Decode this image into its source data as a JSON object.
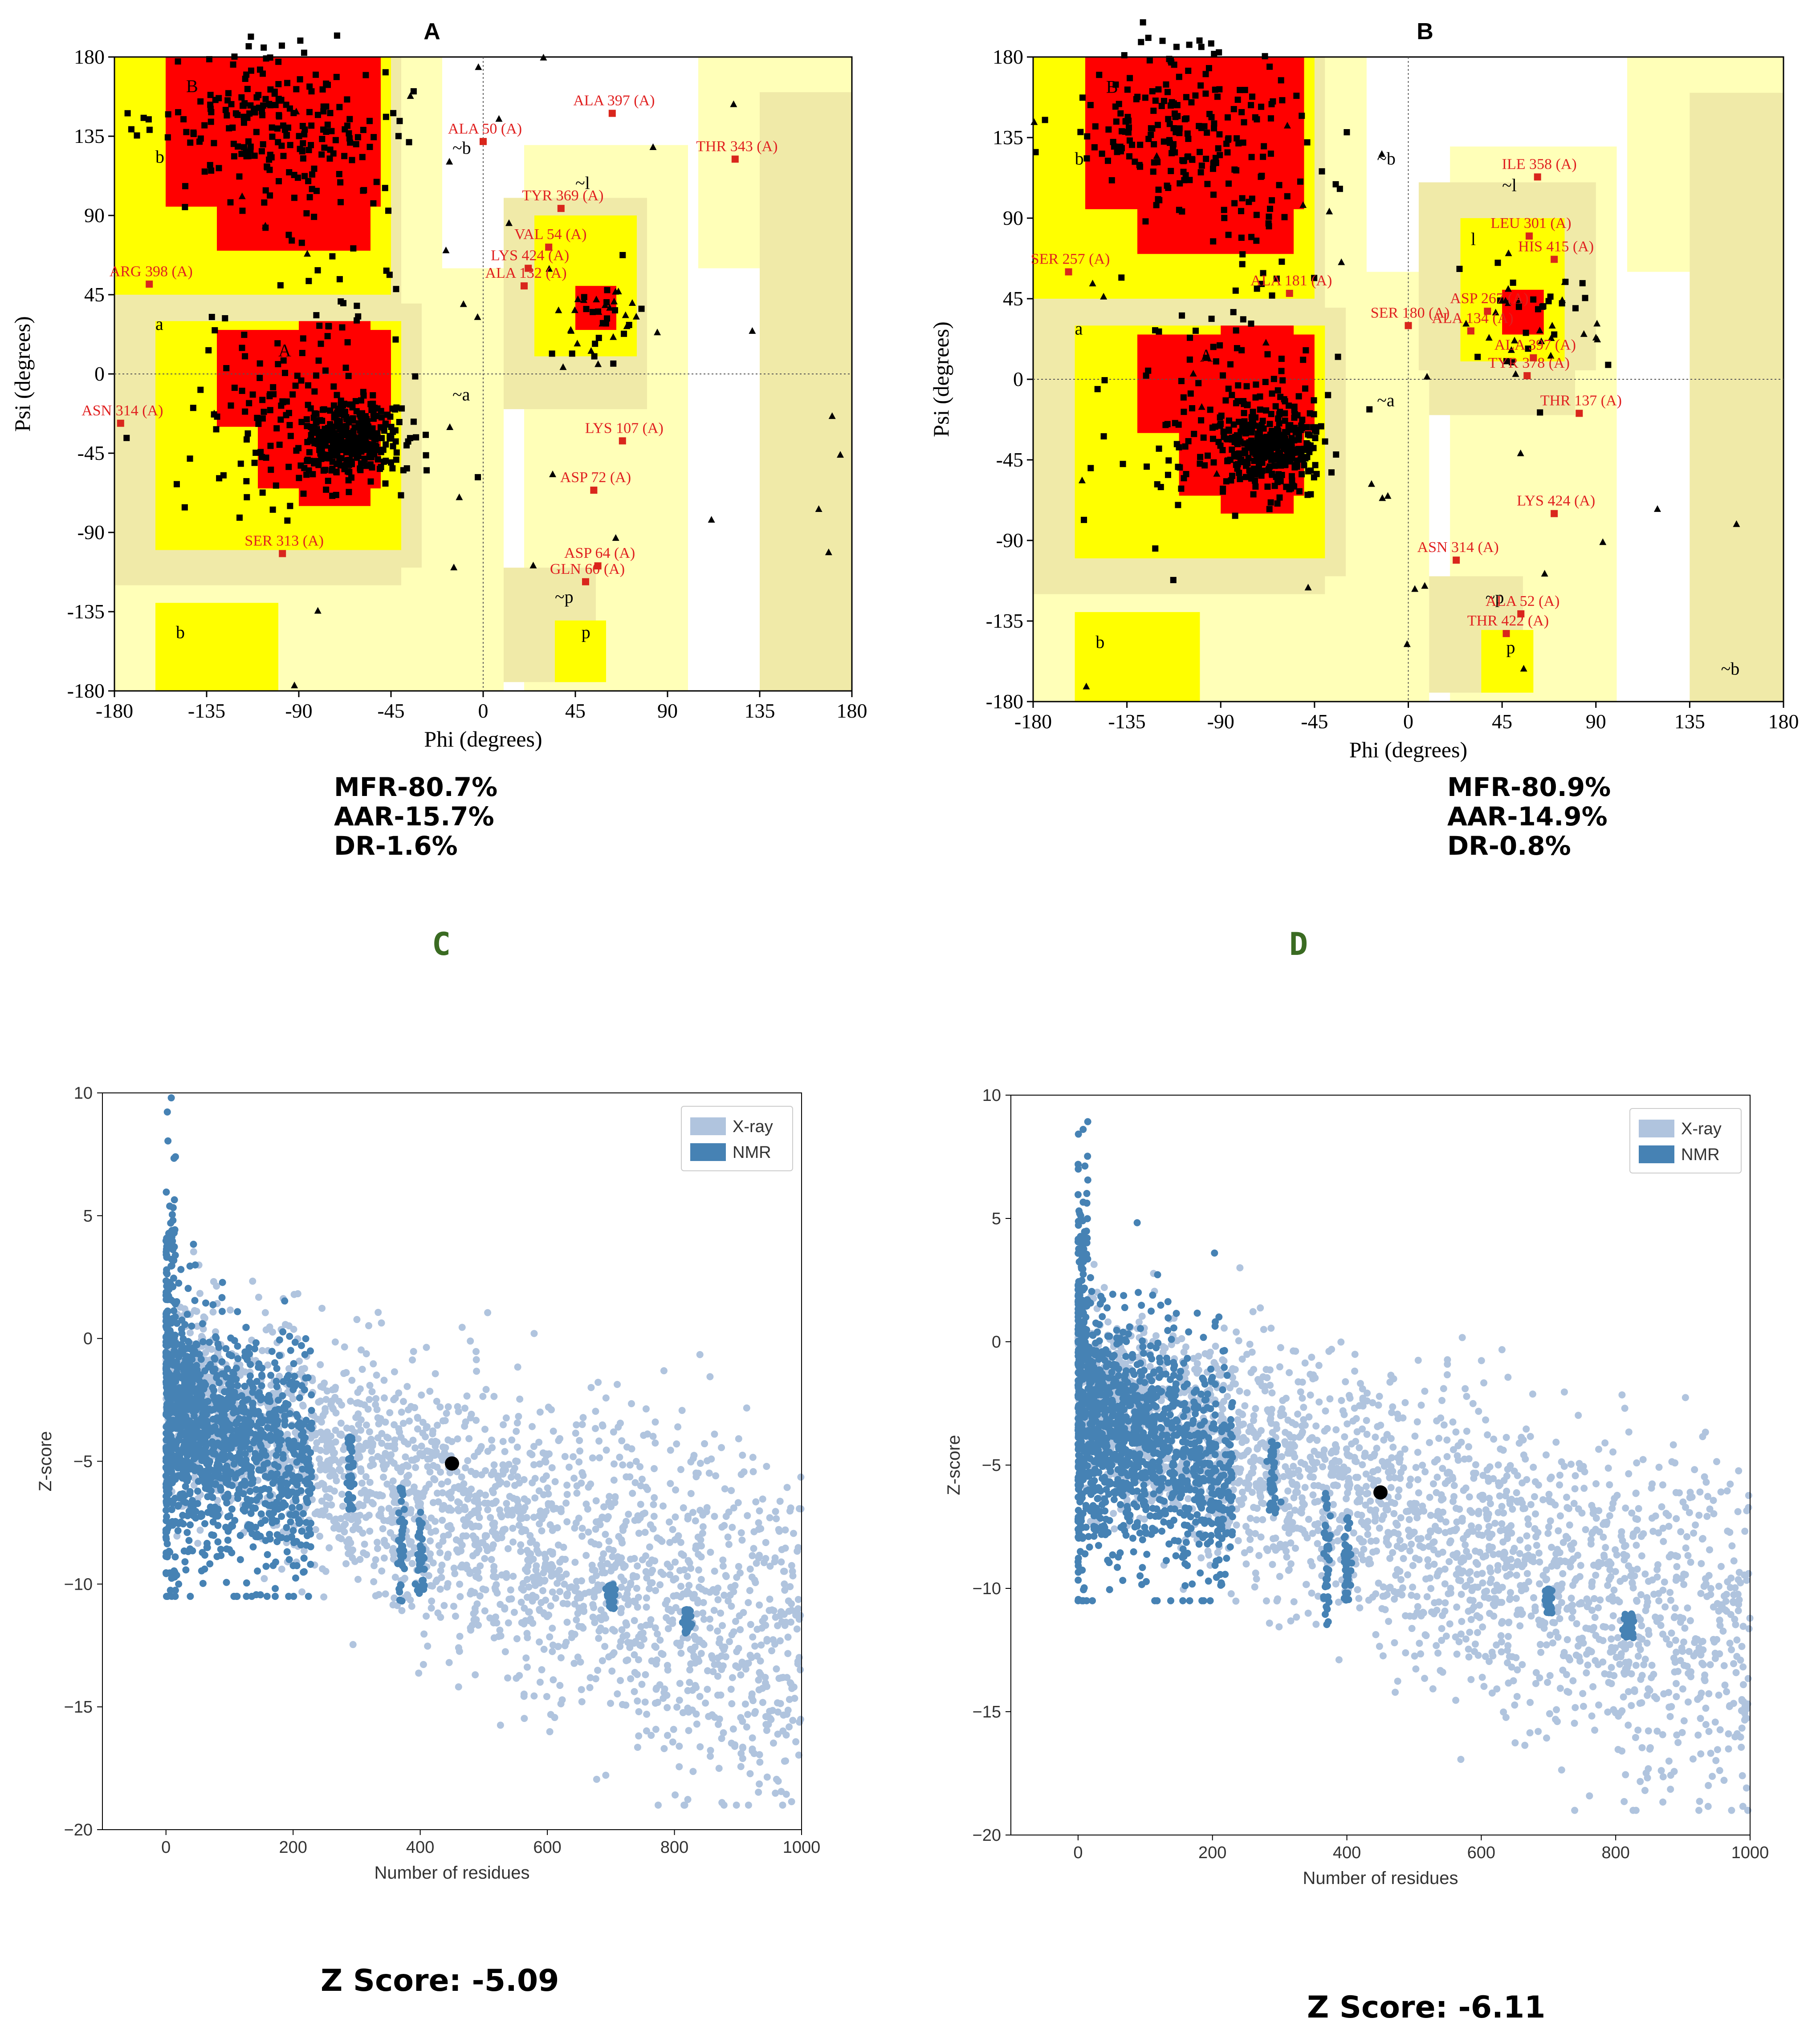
{
  "figure_labels": {
    "A": "A",
    "B": "B",
    "C": "C",
    "D": "D"
  },
  "colors": {
    "core": "#ff0000",
    "allowed": "#ffff00",
    "generous": "#f0eaa8",
    "generous_light": "#ffffb8",
    "outlier": "#d9261c",
    "xray": "#b0c4de",
    "nmr": "#4682b4",
    "query_dot": "#000000"
  },
  "ramachandran_axes": {
    "xlabel": "Phi (degrees)",
    "ylabel": "Psi (degrees)",
    "ticks": [
      "-180",
      "-135",
      "-90",
      "-45",
      "0",
      "45",
      "90",
      "135",
      "180"
    ]
  },
  "zscore_axes": {
    "xlabel": "Number of residues",
    "ylabel": "Z-score",
    "xticks": [
      "0",
      "200",
      "400",
      "600",
      "800",
      "1000"
    ],
    "yticks": [
      "10",
      "5",
      "0",
      "−5",
      "−10",
      "−15",
      "−20"
    ],
    "legend_xray": "X-ray",
    "legend_nmr": "NMR"
  },
  "stats_A": {
    "mfr": "MFR-80.7%",
    "aar": "AAR-15.7%",
    "dr": "DR-1.6%"
  },
  "stats_B": {
    "mfr": "MFR-80.9%",
    "aar": "AAR-14.9%",
    "dr": "DR-0.8%"
  },
  "zscore_C": "Z Score: -5.09",
  "zscore_D": "Z Score: -6.11",
  "chart_data": [
    {
      "type": "scatter",
      "title": "A",
      "xlabel": "Phi (degrees)",
      "ylabel": "Psi (degrees)",
      "xlim": [
        -180,
        180
      ],
      "ylim": [
        -180,
        180
      ],
      "region_labels": [
        "B",
        "b",
        "a",
        "A",
        "~b",
        "~l",
        "~a",
        "~p",
        "p",
        "b"
      ],
      "outliers": [
        {
          "label": "ALA 397 (A)",
          "phi": 63,
          "psi": 148
        },
        {
          "label": "ALA 50 (A)",
          "phi": 0,
          "psi": 132
        },
        {
          "label": "THR 343 (A)",
          "phi": 123,
          "psi": 122
        },
        {
          "label": "TYR 369 (A)",
          "phi": 38,
          "psi": 94
        },
        {
          "label": "VAL 54 (A)",
          "phi": 32,
          "psi": 72
        },
        {
          "label": "LYS 424 (A)",
          "phi": 22,
          "psi": 60
        },
        {
          "label": "ALA 132 (A)",
          "phi": 20,
          "psi": 50
        },
        {
          "label": "ARG 398 (A)",
          "phi": -163,
          "psi": 51
        },
        {
          "label": "ASN 314 (A)",
          "phi": -177,
          "psi": -28
        },
        {
          "label": "LYS 107 (A)",
          "phi": 68,
          "psi": -38
        },
        {
          "label": "ASP 72 (A)",
          "phi": 54,
          "psi": -66
        },
        {
          "label": "SER 313 (A)",
          "phi": -98,
          "psi": -102
        },
        {
          "label": "ASP 64 (A)",
          "phi": 56,
          "psi": -109
        },
        {
          "label": "GLN 60 (A)",
          "phi": 50,
          "psi": -118
        }
      ]
    },
    {
      "type": "scatter",
      "title": "B",
      "xlabel": "Phi (degrees)",
      "ylabel": "Psi (degrees)",
      "xlim": [
        -180,
        180
      ],
      "ylim": [
        -180,
        180
      ],
      "region_labels": [
        "B",
        "b",
        "a",
        "A",
        "~b",
        "~l",
        "l",
        "~a",
        "~p",
        "p",
        "b",
        "~b"
      ],
      "outliers": [
        {
          "label": "ILE 358 (A)",
          "phi": 62,
          "psi": 113
        },
        {
          "label": "SER 257 (A)",
          "phi": -163,
          "psi": 60
        },
        {
          "label": "LEU 301 (A)",
          "phi": 58,
          "psi": 80
        },
        {
          "label": "HIS 415 (A)",
          "phi": 70,
          "psi": 67
        },
        {
          "label": "ALA 181 (A)",
          "phi": -57,
          "psi": 48
        },
        {
          "label": "SER 180 (A)",
          "phi": 0,
          "psi": 30
        },
        {
          "label": "ASP 267 (A)",
          "phi": 38,
          "psi": 38
        },
        {
          "label": "ALA 134 (A)",
          "phi": 30,
          "psi": 27
        },
        {
          "label": "ALA 397 (A)",
          "phi": 60,
          "psi": 12
        },
        {
          "label": "TYR 378 (A)",
          "phi": 57,
          "psi": 2
        },
        {
          "label": "THR 137 (A)",
          "phi": 82,
          "psi": -19
        },
        {
          "label": "LYS 424 (A)",
          "phi": 70,
          "psi": -75
        },
        {
          "label": "ASN 314 (A)",
          "phi": 23,
          "psi": -101
        },
        {
          "label": "ALA 52 (A)",
          "phi": 54,
          "psi": -131
        },
        {
          "label": "THR 422 (A)",
          "phi": 47,
          "psi": -142
        }
      ]
    },
    {
      "type": "scatter",
      "title": "C",
      "xlabel": "Number of residues",
      "ylabel": "Z-score",
      "xlim": [
        -100,
        1000
      ],
      "ylim": [
        -20,
        10
      ],
      "series": [
        {
          "name": "X-ray"
        },
        {
          "name": "NMR"
        }
      ],
      "query": {
        "residues": 450,
        "zscore": -5.09
      }
    },
    {
      "type": "scatter",
      "title": "D",
      "xlabel": "Number of residues",
      "ylabel": "Z-score",
      "xlim": [
        -100,
        1000
      ],
      "ylim": [
        -20,
        10
      ],
      "series": [
        {
          "name": "X-ray"
        },
        {
          "name": "NMR"
        }
      ],
      "query": {
        "residues": 450,
        "zscore": -6.11
      }
    }
  ]
}
